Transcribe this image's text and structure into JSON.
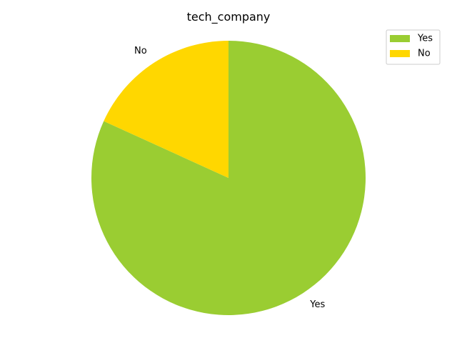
{
  "chart_data": {
    "type": "pie",
    "title": "tech_company",
    "slices": [
      {
        "label": "Yes",
        "value": 81.8,
        "color": "#9acd32"
      },
      {
        "label": "No",
        "value": 18.2,
        "color": "#ffd700"
      }
    ],
    "legend": {
      "placement": "top-right",
      "entries": [
        "Yes",
        "No"
      ]
    },
    "start_angle_deg": 90,
    "direction": "clockwise"
  }
}
